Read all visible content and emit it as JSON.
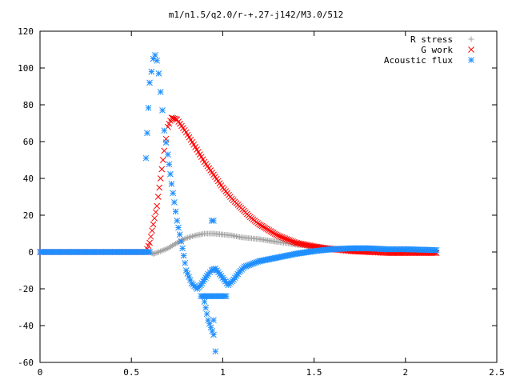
{
  "chart_data": {
    "type": "scatter",
    "title": "m1/n1.5/q2.0/r-+.27-j142/M3.0/512",
    "xlim": [
      0,
      2.5
    ],
    "ylim": [
      -60,
      120
    ],
    "x_ticks": [
      0,
      0.5,
      1,
      1.5,
      2,
      2.5
    ],
    "x_tick_labels": [
      "0",
      "0.5",
      "1",
      "1.5",
      "2",
      "2.5"
    ],
    "y_ticks": [
      -60,
      -40,
      -20,
      0,
      20,
      40,
      60,
      80,
      100,
      120
    ],
    "y_tick_labels": [
      "-60",
      "-40",
      "-20",
      "0",
      "20",
      "40",
      "60",
      "80",
      "100",
      "120"
    ],
    "grid": false,
    "legend_position": "top-right",
    "series": [
      {
        "name": "R stress",
        "marker": "plus",
        "color": "#a0a0a0",
        "points": [
          [
            0,
            0
          ],
          [
            0.2,
            0
          ],
          [
            0.4,
            0
          ],
          [
            0.55,
            0
          ],
          [
            0.6,
            0
          ],
          [
            0.62,
            -1
          ],
          [
            0.65,
            0
          ],
          [
            0.7,
            2
          ],
          [
            0.75,
            5
          ],
          [
            0.8,
            7.5
          ],
          [
            0.85,
            9
          ],
          [
            0.9,
            10
          ],
          [
            0.95,
            10
          ],
          [
            1.0,
            9.5
          ],
          [
            1.05,
            9
          ],
          [
            1.1,
            8
          ],
          [
            1.2,
            7
          ],
          [
            1.3,
            5.5
          ],
          [
            1.4,
            4
          ],
          [
            1.5,
            3
          ],
          [
            1.6,
            2
          ],
          [
            1.7,
            1.5
          ],
          [
            1.8,
            1
          ],
          [
            2.0,
            0.5
          ],
          [
            2.17,
            0.5
          ]
        ]
      },
      {
        "name": "G work",
        "marker": "x",
        "color": "#ff0000",
        "points": [
          [
            0,
            0
          ],
          [
            0.2,
            0
          ],
          [
            0.4,
            0
          ],
          [
            0.58,
            0
          ],
          [
            0.6,
            5
          ],
          [
            0.62,
            15
          ],
          [
            0.64,
            25
          ],
          [
            0.66,
            40
          ],
          [
            0.68,
            55
          ],
          [
            0.7,
            68
          ],
          [
            0.72,
            73
          ],
          [
            0.75,
            72
          ],
          [
            0.8,
            65
          ],
          [
            0.85,
            57
          ],
          [
            0.9,
            49
          ],
          [
            0.95,
            42
          ],
          [
            1.0,
            35
          ],
          [
            1.05,
            29
          ],
          [
            1.1,
            24
          ],
          [
            1.15,
            19
          ],
          [
            1.2,
            15
          ],
          [
            1.3,
            9
          ],
          [
            1.4,
            5
          ],
          [
            1.5,
            3
          ],
          [
            1.6,
            1.5
          ],
          [
            1.7,
            0.5
          ],
          [
            1.8,
            0
          ],
          [
            1.9,
            -0.5
          ],
          [
            2.0,
            -0.5
          ],
          [
            2.17,
            -0.5
          ]
        ]
      },
      {
        "name": "Acoustic flux",
        "marker": "star",
        "color": "#1f8fff",
        "points": [
          [
            0,
            0
          ],
          [
            0.2,
            0
          ],
          [
            0.4,
            0
          ],
          [
            0.6,
            0
          ],
          [
            0.58,
            51
          ],
          [
            0.6,
            92
          ],
          [
            0.61,
            98
          ],
          [
            0.62,
            105
          ],
          [
            0.63,
            107
          ],
          [
            0.64,
            104
          ],
          [
            0.65,
            97
          ],
          [
            0.66,
            87
          ],
          [
            0.67,
            77
          ],
          [
            0.68,
            66
          ],
          [
            0.7,
            53
          ],
          [
            0.72,
            37
          ],
          [
            0.75,
            17
          ],
          [
            0.78,
            2
          ],
          [
            0.8,
            -10
          ],
          [
            0.83,
            -17
          ],
          [
            0.86,
            -20
          ],
          [
            0.88,
            -18
          ],
          [
            0.9,
            -15
          ],
          [
            0.92,
            -12
          ],
          [
            0.94,
            -10
          ],
          [
            0.96,
            -9
          ],
          [
            1.0,
            -14
          ],
          [
            1.03,
            -18
          ],
          [
            1.06,
            -15
          ],
          [
            1.09,
            -11
          ],
          [
            1.12,
            -8
          ],
          [
            1.2,
            -5
          ],
          [
            1.3,
            -3
          ],
          [
            1.4,
            -1
          ],
          [
            1.5,
            0.5
          ],
          [
            1.6,
            1.5
          ],
          [
            1.7,
            2
          ],
          [
            1.8,
            2
          ],
          [
            1.9,
            1.5
          ],
          [
            2.0,
            1.5
          ],
          [
            2.17,
            1
          ],
          [
            0.9,
            -27
          ],
          [
            0.92,
            -37
          ],
          [
            0.95,
            -45
          ],
          [
            0.96,
            -54
          ],
          [
            0.95,
            -37
          ],
          [
            0.94,
            17
          ],
          [
            0.95,
            17
          ],
          [
            0.88,
            -24
          ],
          [
            0.99,
            -24
          ],
          [
            1.02,
            -24
          ]
        ]
      }
    ]
  }
}
